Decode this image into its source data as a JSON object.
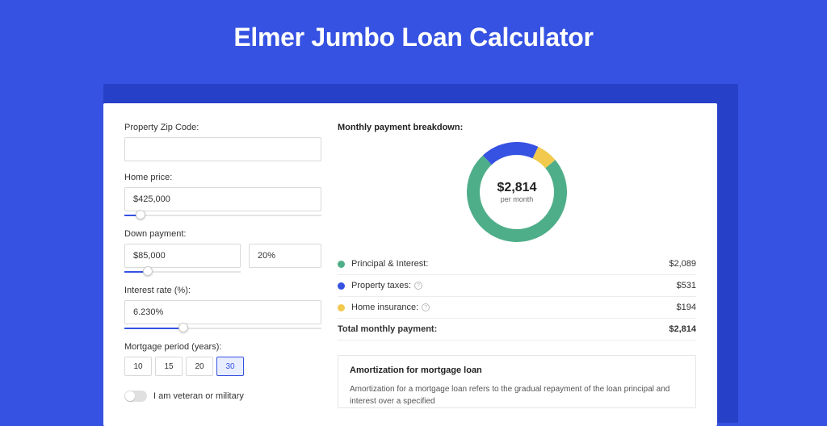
{
  "theme": {
    "page_bg": "#3652e2",
    "card_bg": "#ffffff",
    "shadow_bg": "#2740c8",
    "title_color": "#ffffff",
    "input_border": "#d9d9d9",
    "slider_track": "#e5e5e5",
    "slider_fill": "#3652e2",
    "divider": "#ececec"
  },
  "header": {
    "title": "Elmer Jumbo Loan Calculator",
    "title_fontsize": 32,
    "title_weight": 700
  },
  "form": {
    "zip": {
      "label": "Property Zip Code:",
      "value": ""
    },
    "home_price": {
      "label": "Home price:",
      "value": "$425,000",
      "slider_percent": 8
    },
    "down_payment": {
      "label": "Down payment:",
      "amount": "$85,000",
      "percent": "20%",
      "slider_percent": 20
    },
    "interest": {
      "label": "Interest rate (%):",
      "value": "6.230%",
      "slider_percent": 30
    },
    "period": {
      "label": "Mortgage period (years):",
      "options": [
        "10",
        "15",
        "20",
        "30"
      ],
      "selected_index": 3
    },
    "veteran": {
      "label": "I am veteran or military",
      "checked": false
    }
  },
  "breakdown": {
    "title": "Monthly payment breakdown:",
    "donut": {
      "amount": "$2,814",
      "sub": "per month",
      "size": 124,
      "stroke_width": 16,
      "slices": [
        {
          "key": "principal",
          "value": 2089,
          "color": "#4fae8a"
        },
        {
          "key": "taxes",
          "value": 531,
          "color": "#3652e2"
        },
        {
          "key": "insurance",
          "value": 194,
          "color": "#f2c94c"
        }
      ],
      "start_angle_deg": -40
    },
    "rows": [
      {
        "dot": "#4fae8a",
        "label": "Principal & Interest:",
        "info": false,
        "value": "$2,089"
      },
      {
        "dot": "#3652e2",
        "label": "Property taxes:",
        "info": true,
        "value": "$531"
      },
      {
        "dot": "#f2c94c",
        "label": "Home insurance:",
        "info": true,
        "value": "$194"
      }
    ],
    "total": {
      "label": "Total monthly payment:",
      "value": "$2,814"
    }
  },
  "amortization": {
    "title": "Amortization for mortgage loan",
    "text": "Amortization for a mortgage loan refers to the gradual repayment of the loan principal and interest over a specified"
  }
}
